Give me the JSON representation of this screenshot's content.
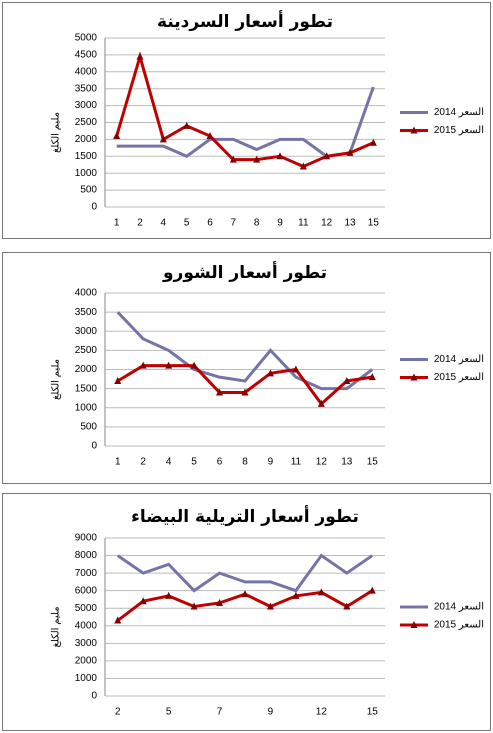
{
  "chart_data": [
    {
      "type": "line",
      "title": "تطور أسعار السردينة",
      "y_label": "مليم الكلغ",
      "categories": [
        "1",
        "2",
        "4",
        "5",
        "6",
        "7",
        "8",
        "9",
        "11",
        "12",
        "13",
        "15"
      ],
      "series": [
        {
          "name": "السعر 2014",
          "color": "#7474a6",
          "marker": "none",
          "values": [
            1800,
            1800,
            1800,
            1500,
            2000,
            2000,
            1700,
            2000,
            2000,
            1500,
            1600,
            3550
          ]
        },
        {
          "name": "السعر 2015",
          "color": "#c00000",
          "marker": "triangle",
          "values": [
            2100,
            4450,
            2000,
            2400,
            2100,
            1400,
            1400,
            1500,
            1200,
            1500,
            1600,
            1900
          ]
        }
      ],
      "ylim": [
        0,
        5000
      ],
      "yticks": [
        0,
        500,
        1000,
        1500,
        2000,
        2500,
        3000,
        3500,
        4000,
        4500,
        5000
      ],
      "grid": true,
      "legend": "right"
    },
    {
      "type": "line",
      "title": "تطور أسعار الشورو",
      "y_label": "مليم الكلغ",
      "categories": [
        "1",
        "2",
        "4",
        "5",
        "6",
        "8",
        "9",
        "11",
        "12",
        "13",
        "15"
      ],
      "series": [
        {
          "name": "السعر 2014",
          "color": "#7474a6",
          "marker": "none",
          "values": [
            3500,
            2800,
            2500,
            2000,
            1800,
            1700,
            2500,
            1800,
            1500,
            1500,
            2000
          ]
        },
        {
          "name": "السعر 2015",
          "color": "#c00000",
          "marker": "triangle",
          "values": [
            1700,
            2100,
            2100,
            2100,
            1400,
            1400,
            1900,
            2000,
            1100,
            1700,
            1800
          ]
        }
      ],
      "ylim": [
        0,
        4000
      ],
      "yticks": [
        0,
        500,
        1000,
        1500,
        2000,
        2500,
        3000,
        3500,
        4000
      ],
      "grid": true,
      "legend": "right"
    },
    {
      "type": "line",
      "title": "تطور أسعار التريلية البيضاء",
      "y_label": "مليم الكلغ",
      "categories": [
        "2",
        null,
        "5",
        null,
        "7",
        null,
        "9",
        null,
        "12",
        null,
        "15"
      ],
      "series": [
        {
          "name": "السعر 2014",
          "color": "#7474a6",
          "marker": "none",
          "values": [
            8000,
            7000,
            7500,
            6000,
            7000,
            6500,
            6500,
            6000,
            8000,
            7000,
            8000
          ]
        },
        {
          "name": "السعر 2015",
          "color": "#c00000",
          "marker": "triangle",
          "values": [
            4300,
            5400,
            5700,
            5100,
            5300,
            5800,
            5100,
            5700,
            5900,
            5100,
            6000
          ]
        }
      ],
      "ylim": [
        0,
        9000
      ],
      "yticks": [
        0,
        1000,
        2000,
        3000,
        4000,
        5000,
        6000,
        7000,
        8000,
        9000
      ],
      "grid": true,
      "legend": "right"
    }
  ]
}
